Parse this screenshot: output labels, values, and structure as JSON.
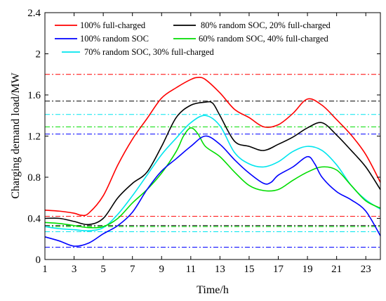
{
  "chart_data": {
    "type": "line",
    "xlabel": "Time/h",
    "ylabel": "Charging demand load/MW",
    "xlim": [
      1,
      24
    ],
    "ylim": [
      0,
      2.4
    ],
    "xticks": [
      1,
      3,
      5,
      7,
      9,
      11,
      13,
      15,
      17,
      19,
      21,
      23
    ],
    "yticks": [
      0,
      0.4,
      0.8,
      1.2,
      1.6,
      2.0,
      2.4
    ],
    "ytick_labels": [
      "0",
      "0.4",
      "0.8",
      "1.2",
      "1.6",
      "2",
      "2.4"
    ],
    "grid": false,
    "legend": "top",
    "series": [
      {
        "name": "100% full-charged",
        "color": "#ff0000",
        "x": [
          1,
          2,
          3,
          3.5,
          4,
          5,
          6,
          7,
          8,
          9,
          10,
          11,
          11.5,
          12,
          13,
          14,
          15,
          16,
          17,
          18,
          19,
          20,
          21,
          22,
          23,
          24
        ],
        "y": [
          0.48,
          0.47,
          0.45,
          0.43,
          0.45,
          0.62,
          0.92,
          1.17,
          1.37,
          1.57,
          1.67,
          1.75,
          1.77,
          1.75,
          1.62,
          1.46,
          1.38,
          1.29,
          1.31,
          1.42,
          1.56,
          1.5,
          1.36,
          1.21,
          1.02,
          0.75
        ],
        "max_level": 1.8,
        "min_level": 0.42
      },
      {
        "name": "80% random SOC, 20% full-charged",
        "color": "#000000",
        "x": [
          1,
          2,
          3,
          4,
          5,
          6,
          7,
          8,
          9,
          10,
          11,
          12,
          12.5,
          13,
          14,
          15,
          16,
          17,
          18,
          19,
          20,
          21,
          22,
          23,
          24
        ],
        "y": [
          0.4,
          0.4,
          0.37,
          0.34,
          0.4,
          0.6,
          0.74,
          0.85,
          1.1,
          1.38,
          1.5,
          1.53,
          1.52,
          1.4,
          1.15,
          1.1,
          1.06,
          1.12,
          1.19,
          1.28,
          1.33,
          1.21,
          1.06,
          0.9,
          0.68
        ],
        "max_level": 1.54,
        "min_level": 0.33
      },
      {
        "name": "100% random SOC",
        "color": "#0000ff",
        "x": [
          1,
          2,
          3,
          4,
          5,
          6,
          7,
          8,
          9,
          10,
          11,
          12,
          13,
          14,
          15,
          16,
          16.5,
          17,
          18,
          19,
          19.5,
          20,
          21,
          22,
          23,
          24
        ],
        "y": [
          0.22,
          0.18,
          0.13,
          0.16,
          0.25,
          0.33,
          0.46,
          0.68,
          0.86,
          0.98,
          1.1,
          1.2,
          1.12,
          0.97,
          0.84,
          0.74,
          0.75,
          0.82,
          0.9,
          1.0,
          0.93,
          0.8,
          0.66,
          0.58,
          0.47,
          0.23
        ],
        "max_level": 1.22,
        "min_level": 0.12
      },
      {
        "name": "60% random SOC, 40% full-charged",
        "color": "#00dd00",
        "x": [
          1,
          2,
          3,
          4,
          5,
          6,
          7,
          8,
          9,
          10,
          10.5,
          11,
          11.5,
          12,
          13,
          14,
          15,
          16,
          17,
          18,
          19,
          20,
          21,
          22,
          23,
          24
        ],
        "y": [
          0.36,
          0.35,
          0.33,
          0.31,
          0.32,
          0.4,
          0.55,
          0.68,
          0.84,
          1.05,
          1.2,
          1.28,
          1.22,
          1.1,
          1.0,
          0.85,
          0.72,
          0.67,
          0.68,
          0.77,
          0.85,
          0.9,
          0.87,
          0.72,
          0.57,
          0.5
        ],
        "max_level": 1.29,
        "min_level": 0.32
      },
      {
        "name": "70% random SOC, 30% full-charged",
        "color": "#00e5ee",
        "x": [
          1,
          2,
          3,
          4,
          5,
          6,
          7,
          8,
          9,
          10,
          11,
          12,
          13,
          14,
          15,
          16,
          17,
          18,
          19,
          20,
          21,
          22,
          23,
          24
        ],
        "y": [
          0.32,
          0.3,
          0.29,
          0.28,
          0.31,
          0.44,
          0.62,
          0.82,
          1.02,
          1.18,
          1.33,
          1.4,
          1.3,
          1.04,
          0.93,
          0.9,
          0.95,
          1.05,
          1.1,
          1.06,
          0.92,
          0.72,
          0.58,
          0.49
        ],
        "max_level": 1.41,
        "min_level": 0.27
      }
    ]
  }
}
